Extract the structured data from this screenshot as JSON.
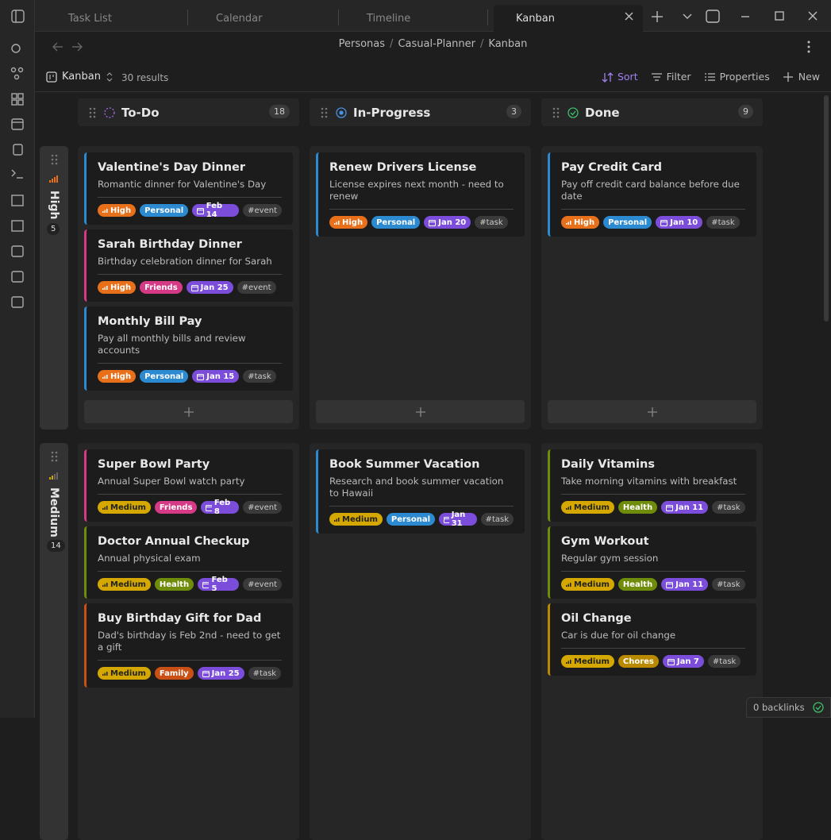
{
  "tabs": [
    {
      "label": "Task List"
    },
    {
      "label": "Calendar"
    },
    {
      "label": "Timeline"
    },
    {
      "label": "Kanban",
      "active": true
    }
  ],
  "breadcrumb": [
    "Personas",
    "Casual-Planner",
    "Kanban"
  ],
  "toolbar": {
    "view": "Kanban",
    "results": "30 results",
    "actions": [
      "Sort",
      "Filter",
      "Properties",
      "New"
    ]
  },
  "columns": [
    {
      "name": "To-Do",
      "count": 18,
      "color": "#a46be8"
    },
    {
      "name": "In-Progress",
      "count": 3,
      "color": "#4a90e2"
    },
    {
      "name": "Done",
      "count": 9,
      "color": "#3cbf6a"
    }
  ],
  "priority_colors": {
    "High": "#e8701a",
    "Medium": "#d4a800"
  },
  "tag_colors": {
    "Personal": "#2b8ad0",
    "Friends": "#d63a86",
    "Health": "#6f8c0a",
    "Family": "#c94f14",
    "Chores": "#b98a00"
  },
  "groups": [
    {
      "name": "High",
      "count": 5,
      "cells": [
        [
          {
            "title": "Valentine's Day Dinner",
            "desc": "Romantic dinner for Valentine's Day",
            "priority": "High",
            "tag": "Personal",
            "date": "Feb 14",
            "hashtag": "#event"
          },
          {
            "title": "Sarah Birthday Dinner",
            "desc": "Birthday celebration dinner for Sarah",
            "priority": "High",
            "tag": "Friends",
            "date": "Jan 25",
            "hashtag": "#event"
          },
          {
            "title": "Monthly Bill Pay",
            "desc": "Pay all monthly bills and review accounts",
            "priority": "High",
            "tag": "Personal",
            "date": "Jan 15",
            "hashtag": "#task"
          }
        ],
        [
          {
            "title": "Renew Drivers License",
            "desc": "License expires next month - need to renew",
            "priority": "High",
            "tag": "Personal",
            "date": "Jan 20",
            "hashtag": "#task"
          }
        ],
        [
          {
            "title": "Pay Credit Card",
            "desc": "Pay off credit card balance before due date",
            "priority": "High",
            "tag": "Personal",
            "date": "Jan 10",
            "hashtag": "#task"
          }
        ]
      ]
    },
    {
      "name": "Medium",
      "count": 14,
      "cells": [
        [
          {
            "title": "Super Bowl Party",
            "desc": "Annual Super Bowl watch party",
            "priority": "Medium",
            "tag": "Friends",
            "date": "Feb 8",
            "hashtag": "#event"
          },
          {
            "title": "Doctor Annual Checkup",
            "desc": "Annual physical exam",
            "priority": "Medium",
            "tag": "Health",
            "date": "Feb 5",
            "hashtag": "#event"
          },
          {
            "title": "Buy Birthday Gift for Dad",
            "desc": "Dad's birthday is Feb 2nd - need to get a gift",
            "priority": "Medium",
            "tag": "Family",
            "date": "Jan 25",
            "hashtag": "#task"
          }
        ],
        [
          {
            "title": "Book Summer Vacation",
            "desc": "Research and book summer vacation to Hawaii",
            "priority": "Medium",
            "tag": "Personal",
            "date": "Jan 31",
            "hashtag": "#task"
          }
        ],
        [
          {
            "title": "Daily Vitamins",
            "desc": "Take morning vitamins with breakfast",
            "priority": "Medium",
            "tag": "Health",
            "date": "Jan 11",
            "hashtag": "#task"
          },
          {
            "title": "Gym Workout",
            "desc": "Regular gym session",
            "priority": "Medium",
            "tag": "Health",
            "date": "Jan 11",
            "hashtag": "#task"
          },
          {
            "title": "Oil Change",
            "desc": "Car is due for oil change",
            "priority": "Medium",
            "tag": "Chores",
            "date": "Jan 7",
            "hashtag": "#task"
          }
        ]
      ]
    }
  ],
  "status_bar": {
    "backlinks": "0 backlinks"
  }
}
